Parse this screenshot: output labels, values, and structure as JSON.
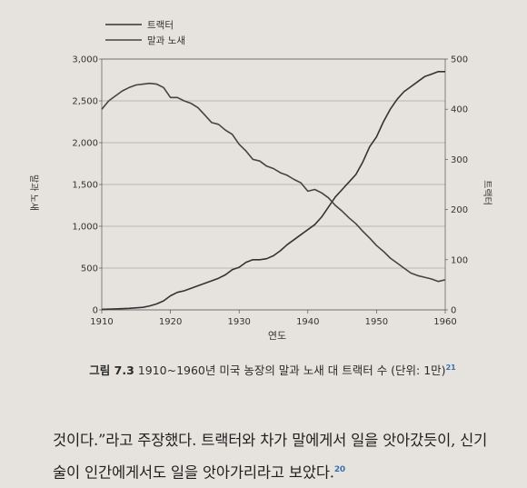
{
  "chart_data": {
    "type": "line",
    "xlabel": "연도",
    "ylabel_left": "말과 노새",
    "ylabel_right": "트랙터",
    "xlim": [
      1910,
      1960
    ],
    "ylim_left": [
      0,
      3000
    ],
    "ylim_right": [
      0,
      500
    ],
    "x_ticks": [
      "1910",
      "1920",
      "1930",
      "1940",
      "1950",
      "1960"
    ],
    "y_ticks_left": [
      "0",
      "500",
      "1,000",
      "1,500",
      "2,000",
      "2,500",
      "3,000"
    ],
    "y_ticks_right": [
      "0",
      "100",
      "200",
      "300",
      "400",
      "500"
    ],
    "grid": true,
    "legend_position": "top-left",
    "series": [
      {
        "name": "트랙터",
        "axis": "right",
        "color": "#333333",
        "x": [
          1910,
          1912,
          1914,
          1916,
          1917,
          1918,
          1919,
          1920,
          1921,
          1922,
          1923,
          1924,
          1925,
          1926,
          1927,
          1928,
          1929,
          1930,
          1931,
          1932,
          1933,
          1934,
          1935,
          1936,
          1937,
          1938,
          1939,
          1940,
          1941,
          1942,
          1943,
          1944,
          1945,
          1946,
          1947,
          1948,
          1949,
          1950,
          1951,
          1952,
          1953,
          1954,
          1955,
          1956,
          1957,
          1958,
          1959,
          1960
        ],
        "values": [
          1,
          2,
          3,
          5,
          8,
          12,
          18,
          28,
          35,
          38,
          43,
          48,
          53,
          58,
          63,
          70,
          80,
          85,
          95,
          100,
          100,
          102,
          108,
          118,
          130,
          140,
          150,
          160,
          170,
          185,
          205,
          225,
          240,
          255,
          270,
          295,
          325,
          345,
          375,
          400,
          420,
          435,
          445,
          455,
          465,
          470,
          475,
          475
        ]
      },
      {
        "name": "말과 노새",
        "axis": "left",
        "color": "#444444",
        "x": [
          1910,
          1911,
          1912,
          1913,
          1914,
          1915,
          1916,
          1917,
          1918,
          1919,
          1920,
          1921,
          1922,
          1923,
          1924,
          1925,
          1926,
          1927,
          1928,
          1929,
          1930,
          1931,
          1932,
          1933,
          1934,
          1935,
          1936,
          1937,
          1938,
          1939,
          1940,
          1941,
          1942,
          1943,
          1944,
          1945,
          1946,
          1947,
          1948,
          1949,
          1950,
          1951,
          1952,
          1953,
          1954,
          1955,
          1956,
          1957,
          1958,
          1959,
          1960
        ],
        "values": [
          2400,
          2500,
          2560,
          2620,
          2660,
          2690,
          2700,
          2710,
          2700,
          2660,
          2540,
          2540,
          2500,
          2470,
          2420,
          2330,
          2240,
          2220,
          2150,
          2100,
          1980,
          1900,
          1800,
          1780,
          1720,
          1690,
          1640,
          1610,
          1560,
          1520,
          1420,
          1440,
          1400,
          1340,
          1250,
          1180,
          1100,
          1030,
          940,
          860,
          770,
          700,
          620,
          560,
          500,
          440,
          410,
          390,
          370,
          340,
          360
        ]
      }
    ]
  },
  "caption": {
    "figure_label": "그림 7.3",
    "text": "1910~1960년 미국 농장의 말과 노새 대 트랙터 수 (단위: 1만)",
    "footnote": "21"
  },
  "body_text": {
    "line1": "것이다.”라고 주장했다. 트랙터와 차가 말에게서 일을 앗아갔듯이, 신기",
    "line2": "술이 인간에게서도 일을 앗아가리라고 보았다.",
    "footnote": "20"
  }
}
